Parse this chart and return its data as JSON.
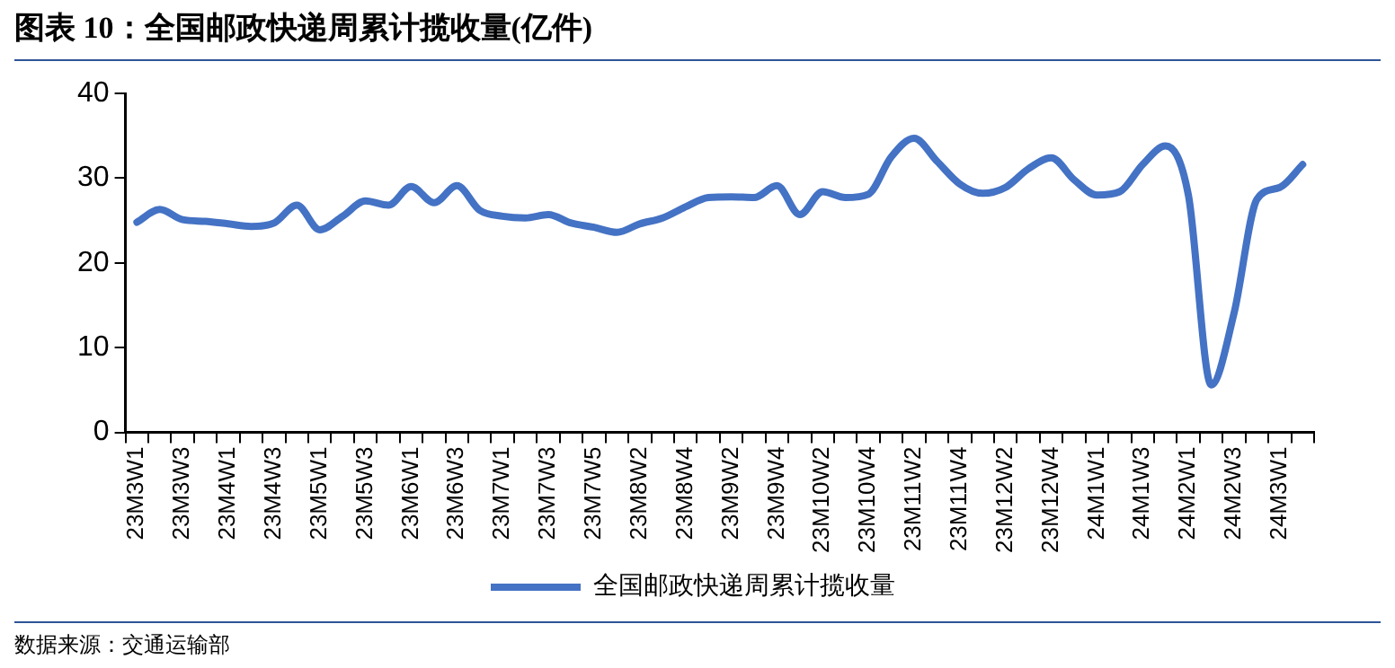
{
  "chart_data": {
    "type": "line",
    "title": "图表 10：全国邮政快递周累计揽收量(亿件)",
    "annotations": [
      "数据来源：交通运输部"
    ],
    "categories": [
      "23M3W1",
      null,
      "23M3W3",
      null,
      "23M4W1",
      null,
      "23M4W3",
      null,
      "23M5W1",
      null,
      "23M5W3",
      null,
      "23M6W1",
      null,
      "23M6W3",
      null,
      "23M7W1",
      null,
      "23M7W3",
      null,
      "23M7W5",
      null,
      "23M8W2",
      null,
      "23M8W4",
      null,
      "23M9W2",
      null,
      "23M9W4",
      null,
      "23M10W2",
      null,
      "23M10W4",
      null,
      "23M11W2",
      null,
      "23M11W4",
      null,
      "23M12W2",
      null,
      "23M12W4",
      null,
      "24M1W1",
      null,
      "24M1W3",
      null,
      "24M2W1",
      null,
      "24M2W3",
      null,
      "24M3W1",
      null
    ],
    "series": [
      {
        "name": "全国邮政快递周累计揽收量",
        "color": "#4472c4",
        "values": [
          24.8,
          26.3,
          25.1,
          24.9,
          24.6,
          24.3,
          24.7,
          26.8,
          23.9,
          25.5,
          27.3,
          26.8,
          29.0,
          27.1,
          29.1,
          26.2,
          25.5,
          25.3,
          25.7,
          24.7,
          24.2,
          23.6,
          24.6,
          25.3,
          26.6,
          27.7,
          27.8,
          27.7,
          29.1,
          25.7,
          28.4,
          27.7,
          28.1,
          32.5,
          34.7,
          32.0,
          29.3,
          28.2,
          28.9,
          31.1,
          32.4,
          29.8,
          28.0,
          28.4,
          31.6,
          33.8,
          28.0,
          5.6,
          14.1,
          27.5,
          28.9,
          31.6
        ]
      }
    ],
    "ylim": [
      0,
      40
    ],
    "yticks": [
      0,
      10,
      20,
      30,
      40
    ],
    "grid": false,
    "legend": "bottom",
    "marker": "none",
    "line_style": "solid"
  }
}
